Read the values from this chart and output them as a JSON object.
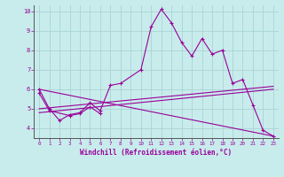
{
  "background_color": "#c8ecec",
  "grid_color": "#aad4d4",
  "line_color": "#990099",
  "xlim": [
    -0.5,
    23.5
  ],
  "ylim": [
    3.5,
    10.3
  ],
  "xlabel": "Windchill (Refroidissement éolien,°C)",
  "yticks": [
    4,
    5,
    6,
    7,
    8,
    9,
    10
  ],
  "xticks": [
    0,
    1,
    2,
    3,
    4,
    5,
    6,
    7,
    8,
    9,
    10,
    11,
    12,
    13,
    14,
    15,
    16,
    17,
    18,
    19,
    20,
    21,
    22,
    23
  ],
  "series": [
    {
      "x": [
        0,
        1,
        2,
        3,
        4,
        5,
        6,
        7,
        8,
        10,
        11,
        12,
        13,
        14,
        15,
        16,
        17,
        18,
        19,
        20,
        21,
        22,
        23
      ],
      "y": [
        6.0,
        5.0,
        4.4,
        4.7,
        4.8,
        5.3,
        4.9,
        6.2,
        6.3,
        7.0,
        9.2,
        10.1,
        9.4,
        8.4,
        7.7,
        8.6,
        7.8,
        8.0,
        6.3,
        6.5,
        5.2,
        3.9,
        3.6
      ],
      "marker": true
    },
    {
      "x": [
        0,
        1,
        3,
        4,
        5,
        6
      ],
      "y": [
        5.8,
        4.9,
        4.65,
        4.75,
        5.1,
        4.75
      ],
      "marker": true
    },
    {
      "x": [
        0,
        23
      ],
      "y": [
        5.0,
        6.15
      ],
      "marker": false
    },
    {
      "x": [
        0,
        23
      ],
      "y": [
        4.8,
        6.0
      ],
      "marker": false
    },
    {
      "x": [
        0,
        23
      ],
      "y": [
        6.0,
        3.6
      ],
      "marker": false
    }
  ]
}
